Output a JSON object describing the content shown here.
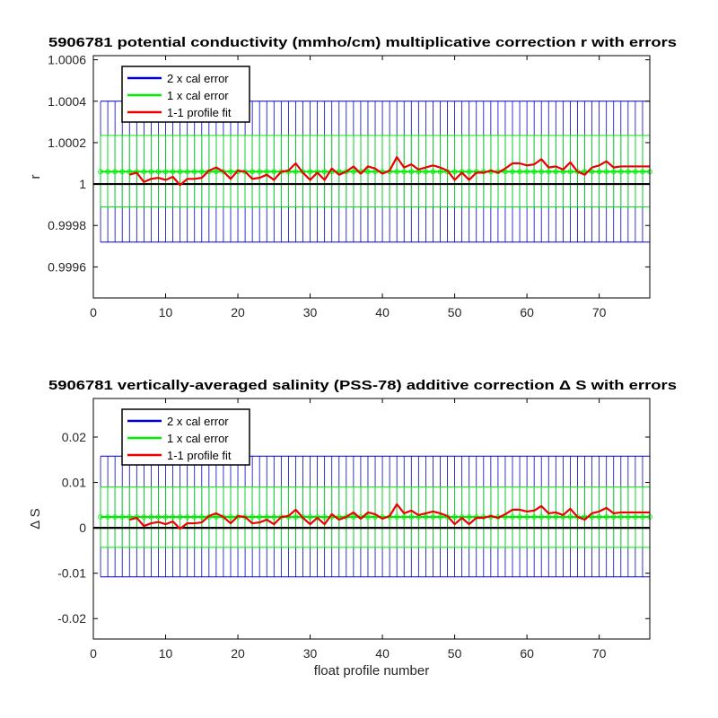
{
  "chart_data": [
    {
      "type": "line",
      "title": "5906781 potential conductivity (mmho/cm) multiplicative correction r with errors",
      "xlabel": "",
      "ylabel": "r",
      "xlim": [
        0,
        77
      ],
      "ylim": [
        0.99945,
        1.00062
      ],
      "x_ticks": [
        0,
        10,
        20,
        30,
        40,
        50,
        60,
        70
      ],
      "y_ticks": [
        0.9996,
        0.9998,
        1,
        1.0002,
        1.0004,
        1.0006
      ],
      "y_tick_labels": [
        "0.9996",
        "0.9998",
        "1",
        "1.0002",
        "1.0004",
        "1.0006"
      ],
      "grid": false,
      "legend_position": "top-left",
      "reference_line": 1,
      "fit_level": 1.00006,
      "error_x_range": [
        1,
        77
      ],
      "series": [
        {
          "name": "2 x cal error",
          "color": "#0000cc",
          "kind": "errorbar",
          "lower": 0.99972,
          "upper": 1.0004
        },
        {
          "name": "1 x cal error",
          "color": "#00ee00",
          "kind": "errorbar",
          "lower": 0.99989,
          "upper": 1.000235
        },
        {
          "name": "1-1 profile fit",
          "color": "#ee0000",
          "kind": "line",
          "x": [
            5,
            6,
            7,
            8,
            9,
            10,
            11,
            12,
            13,
            14,
            15,
            16,
            17,
            18,
            19,
            20,
            21,
            22,
            23,
            24,
            25,
            26,
            27,
            28,
            29,
            30,
            31,
            32,
            33,
            34,
            35,
            36,
            37,
            38,
            39,
            40,
            41,
            42,
            43,
            44,
            45,
            46,
            47,
            48,
            49,
            50,
            51,
            52,
            53,
            54,
            55,
            56,
            57,
            58,
            59,
            60,
            61,
            62,
            63,
            64,
            65,
            66,
            67,
            68,
            69,
            70,
            71,
            72,
            73,
            74,
            75,
            76,
            77
          ],
          "values": [
            1.000045,
            1.000055,
            1.00001,
            1.000025,
            1.00003,
            1.00002,
            1.000035,
            0.999995,
            1.000025,
            1.000025,
            1.00003,
            1.000065,
            1.00008,
            1.00006,
            1.000025,
            1.000065,
            1.00006,
            1.000025,
            1.00003,
            1.000045,
            1.00002,
            1.00006,
            1.000065,
            1.0001,
            1.000055,
            1.00002,
            1.000055,
            1.00002,
            1.000075,
            1.000045,
            1.00006,
            1.000085,
            1.00005,
            1.000085,
            1.000075,
            1.00005,
            1.000065,
            1.00013,
            1.00008,
            1.000095,
            1.00007,
            1.00008,
            1.00009,
            1.00008,
            1.000065,
            1.00002,
            1.000055,
            1.00002,
            1.000055,
            1.000055,
            1.000065,
            1.000055,
            1.000075,
            1.0001,
            1.0001,
            1.00009,
            1.000095,
            1.00012,
            1.00008,
            1.000085,
            1.00007,
            1.000105,
            1.00006,
            1.000045,
            1.00008,
            1.00009,
            1.00011,
            1.00008,
            1.000085,
            1.000085,
            1.000085,
            1.000085,
            1.000085
          ]
        }
      ]
    },
    {
      "type": "line",
      "title": "5906781 vertically-averaged salinity (PSS-78) additive correction Δ S with errors",
      "xlabel": "float profile number",
      "ylabel": "Δ S",
      "xlim": [
        0,
        77
      ],
      "ylim": [
        -0.0245,
        0.0285
      ],
      "x_ticks": [
        0,
        10,
        20,
        30,
        40,
        50,
        60,
        70
      ],
      "y_ticks": [
        -0.02,
        -0.01,
        0,
        0.01,
        0.02
      ],
      "y_tick_labels": [
        "-0.02",
        "-0.01",
        "0",
        "0.01",
        "0.02"
      ],
      "grid": false,
      "legend_position": "top-left",
      "reference_line": 0,
      "fit_level": 0.0024,
      "error_x_range": [
        1,
        77
      ],
      "series": [
        {
          "name": "2 x cal error",
          "color": "#0000cc",
          "kind": "errorbar",
          "lower": -0.0108,
          "upper": 0.0158
        },
        {
          "name": "1 x cal error",
          "color": "#00ee00",
          "kind": "errorbar",
          "lower": -0.0043,
          "upper": 0.009
        },
        {
          "name": "1-1 profile fit",
          "color": "#ee0000",
          "kind": "line",
          "x": [
            5,
            6,
            7,
            8,
            9,
            10,
            11,
            12,
            13,
            14,
            15,
            16,
            17,
            18,
            19,
            20,
            21,
            22,
            23,
            24,
            25,
            26,
            27,
            28,
            29,
            30,
            31,
            32,
            33,
            34,
            35,
            36,
            37,
            38,
            39,
            40,
            41,
            42,
            43,
            44,
            45,
            46,
            47,
            48,
            49,
            50,
            51,
            52,
            53,
            54,
            55,
            56,
            57,
            58,
            59,
            60,
            61,
            62,
            63,
            64,
            65,
            66,
            67,
            68,
            69,
            70,
            71,
            72,
            73,
            74,
            75,
            76,
            77
          ],
          "values": [
            0.0018,
            0.0022,
            0.0004,
            0.001,
            0.0013,
            0.0008,
            0.0014,
            -0.0002,
            0.001,
            0.001,
            0.0012,
            0.0026,
            0.0032,
            0.0024,
            0.001,
            0.0026,
            0.0024,
            0.001,
            0.0012,
            0.0018,
            0.0008,
            0.0024,
            0.0026,
            0.004,
            0.0022,
            0.0008,
            0.0022,
            0.0008,
            0.003,
            0.0018,
            0.0024,
            0.0034,
            0.002,
            0.0034,
            0.003,
            0.002,
            0.0026,
            0.0052,
            0.0032,
            0.0038,
            0.0028,
            0.0032,
            0.0036,
            0.0032,
            0.0026,
            0.0008,
            0.0022,
            0.0008,
            0.0022,
            0.0022,
            0.0026,
            0.0022,
            0.003,
            0.004,
            0.004,
            0.0036,
            0.0038,
            0.0048,
            0.0032,
            0.0034,
            0.0028,
            0.0042,
            0.0024,
            0.0018,
            0.0032,
            0.0036,
            0.0044,
            0.0032,
            0.0034,
            0.0034,
            0.0034,
            0.0034,
            0.0034
          ]
        }
      ]
    }
  ]
}
